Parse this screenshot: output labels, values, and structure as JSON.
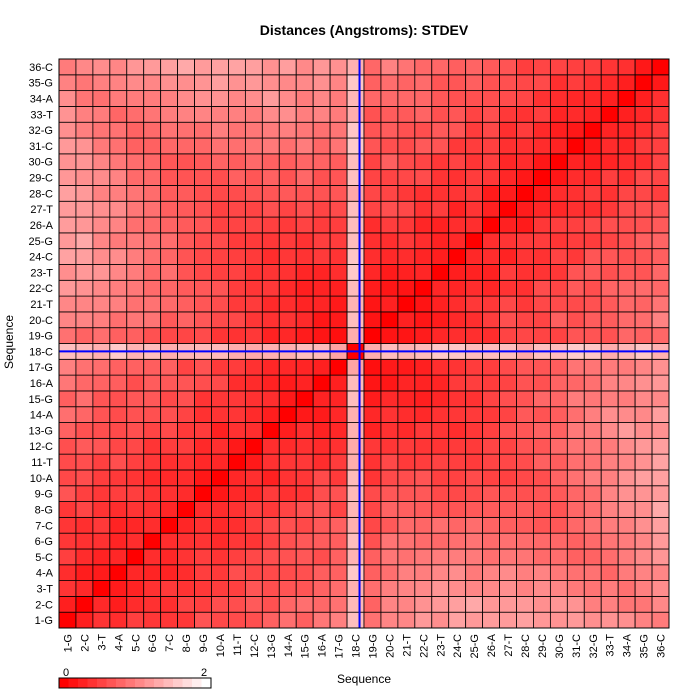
{
  "chart_data": {
    "type": "heatmap",
    "title": "Distances (Angstroms):  STDEV",
    "xlabel": "Sequence",
    "ylabel": "Sequence",
    "labels": [
      "1-G",
      "2-C",
      "3-T",
      "4-A",
      "5-C",
      "6-G",
      "7-C",
      "8-G",
      "9-G",
      "10-A",
      "11-T",
      "12-C",
      "13-G",
      "14-A",
      "15-G",
      "16-A",
      "17-G",
      "18-C",
      "19-G",
      "20-C",
      "21-T",
      "22-C",
      "23-T",
      "24-C",
      "25-G",
      "26-A",
      "27-T",
      "28-C",
      "29-C",
      "30-G",
      "31-C",
      "32-G",
      "33-T",
      "34-A",
      "35-G",
      "36-C"
    ],
    "value_range": [
      0,
      2.5
    ],
    "colorbar": {
      "min_label": "0",
      "max_label": "2",
      "colors": [
        "#ff0000",
        "#ffffff"
      ]
    },
    "highlight_lines": {
      "label": "18-C",
      "color": "#0000ff"
    },
    "palette": {
      "high": "#ff0000",
      "low": "#ffffff",
      "grid": "#000000"
    }
  }
}
